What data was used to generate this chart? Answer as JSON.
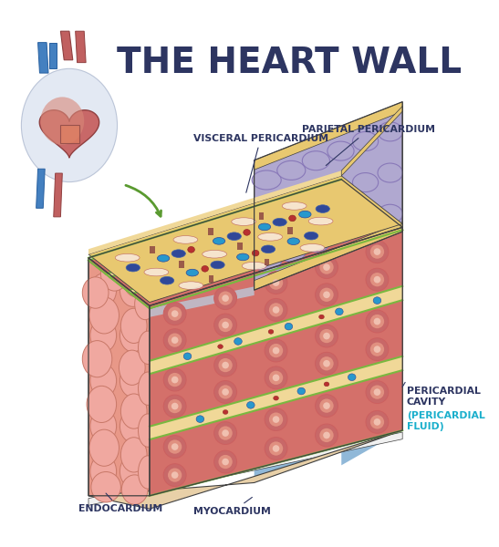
{
  "title": "THE HEART WALL",
  "title_color": "#2d3561",
  "title_fontsize": 28,
  "background_color": "#ffffff",
  "labels": {
    "visceral_pericardium": "VISCERAL PERICARDIUM",
    "parietal_pericardium": "PARIETAL PERICARDIUM",
    "endocardium": "ENDOCARDIUM",
    "myocardium": "MYOCARDIUM",
    "pericardial_cavity_1": "PERICARDIAL",
    "pericardial_cavity_2": "CAVITY",
    "pericardial_cavity_3": "(PERICARDIAL",
    "pericardial_cavity_4": "FLUID)"
  },
  "label_color": "#2d3561",
  "label_cyan": "#1aafcc",
  "label_fontsize": 7.8,
  "colors": {
    "endocardium_cell": "#f0a8a0",
    "endocardium_edge": "#c87868",
    "endocardium_bg": "#e89888",
    "myo_red": "#d4706a",
    "myo_red_light": "#e08880",
    "myo_stripe": "#cc6060",
    "myo_fiber_line": "#b85858",
    "connective_yellow": "#f0d898",
    "connective_yellow_dark": "#e0c070",
    "green_border": "#7ab840",
    "parietal_purple": "#b0a8d0",
    "parietal_purple_edge": "#8878b8",
    "parietal_purple_dark": "#9088b8",
    "blue_cavity": "#90b8d8",
    "blue_cavity_light": "#b8d4e8",
    "pericardium_outline_yellow": "#e8c870",
    "nucleus_dark_blue": "#304898",
    "nucleus_mid_blue": "#4060a8",
    "nucleus_cyan_blue": "#2898cc",
    "nucleus_red": "#b83030",
    "intercalated_disc": "#884040",
    "cell_spindle": "#f8e8d8",
    "cross_section_outer": "#c86868",
    "cross_section_inner": "#e09080",
    "cross_section_center": "#f0c0b0",
    "outline": "#404040",
    "white": "#ffffff",
    "base_tan": "#e8d0a8"
  }
}
